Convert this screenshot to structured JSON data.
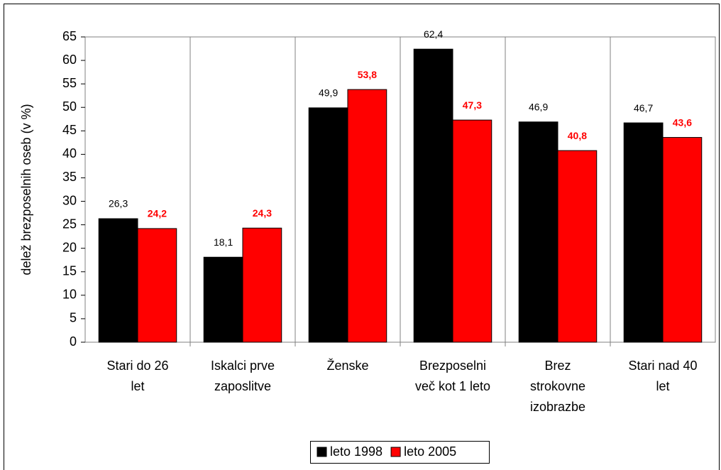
{
  "chart_data": {
    "type": "bar",
    "ylabel": "delež brezposelnih oseb (v %)",
    "categories": [
      "Stari do 26\nlet",
      "Iskalci prve\nzaposlitve",
      "Ženske",
      "Brezposelni\nveč kot 1 leto",
      "Brez\nstrokovne\nizobrazbe",
      "Stari nad 40\nlet"
    ],
    "series": [
      {
        "name": "leto 1998",
        "color": "#000000",
        "values": [
          26.3,
          18.1,
          49.9,
          62.4,
          46.9,
          46.7
        ],
        "value_labels": [
          "26,3",
          "18,1",
          "49,9",
          "62,4",
          "46,9",
          "46,7"
        ]
      },
      {
        "name": "leto 2005",
        "color": "#ff0000",
        "values": [
          24.2,
          24.3,
          53.8,
          47.3,
          40.8,
          43.6
        ],
        "value_labels": [
          "24,2",
          "24,3",
          "53,8",
          "47,3",
          "40,8",
          "43,6"
        ]
      }
    ],
    "ylim": [
      0,
      65
    ],
    "yticks": [
      0,
      5,
      10,
      15,
      20,
      25,
      30,
      35,
      40,
      45,
      50,
      55,
      60,
      65
    ],
    "legend": "bottom"
  }
}
